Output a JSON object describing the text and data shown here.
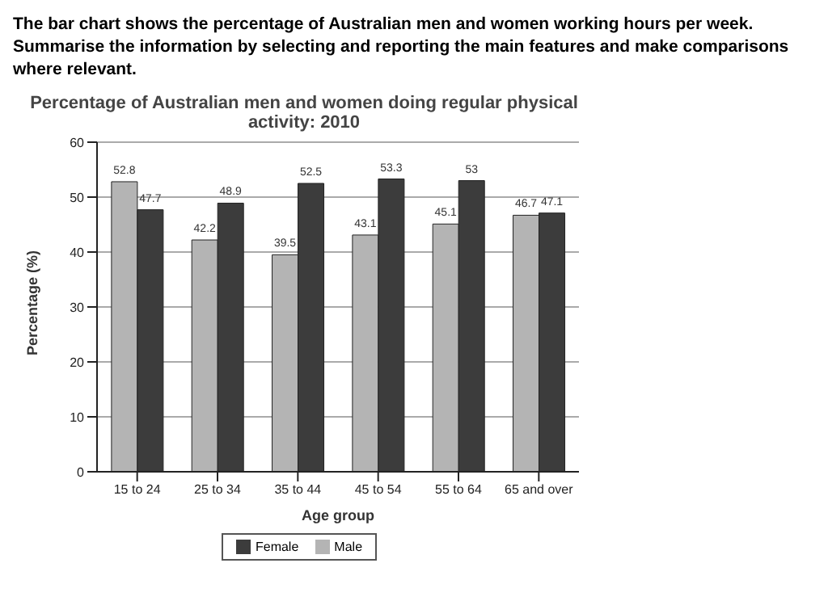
{
  "chart_data": {
    "type": "bar",
    "title": "Percentage of Australian men and women doing regular physical activity: 2010",
    "xlabel": "Age group",
    "ylabel": "Percentage (%)",
    "annotations": [
      "The bar chart shows the percentage of Australian men and women working hours per week. Summarise the information by selecting and reporting the main features and make comparisons where relevant."
    ],
    "categories": [
      "15 to 24",
      "25 to 34",
      "35 to 44",
      "45 to 54",
      "55 to 64",
      "65 and over"
    ],
    "series": [
      {
        "name": "Male",
        "color": "#b4b4b4",
        "values": [
          52.8,
          42.2,
          39.5,
          43.1,
          45.1,
          46.7
        ]
      },
      {
        "name": "Female",
        "color": "#3c3c3c",
        "values": [
          47.7,
          48.9,
          52.5,
          53.3,
          53,
          47.1
        ]
      }
    ],
    "ylim": [
      0,
      60
    ],
    "yticks": [
      0,
      10,
      20,
      30,
      40,
      50,
      60
    ],
    "grid": "y",
    "legend": "bottom",
    "data_labels": true
  }
}
